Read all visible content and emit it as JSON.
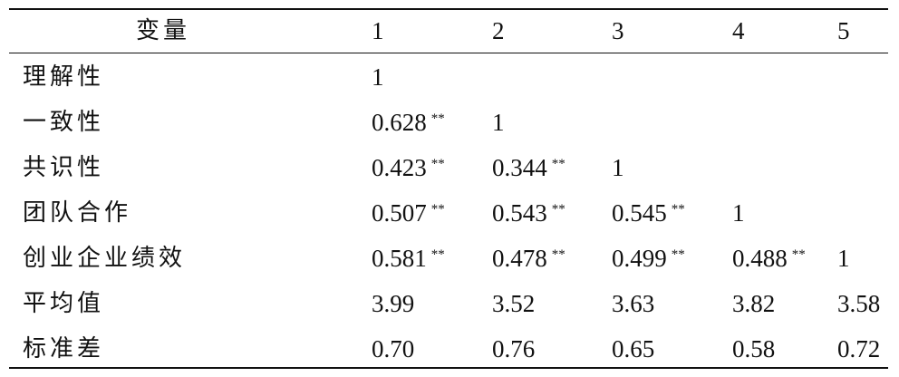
{
  "table": {
    "header": [
      "变量",
      "1",
      "2",
      "3",
      "4",
      "5"
    ],
    "rows": [
      {
        "label": "理解性",
        "cells": [
          {
            "value": "1"
          }
        ]
      },
      {
        "label": "一致性",
        "cells": [
          {
            "value": "0.628",
            "sig": "**"
          },
          {
            "value": "1"
          }
        ]
      },
      {
        "label": "共识性",
        "cells": [
          {
            "value": "0.423",
            "sig": "**"
          },
          {
            "value": "0.344",
            "sig": "**"
          },
          {
            "value": "1"
          }
        ]
      },
      {
        "label": "团队合作",
        "cells": [
          {
            "value": "0.507",
            "sig": "**"
          },
          {
            "value": "0.543",
            "sig": "**"
          },
          {
            "value": "0.545",
            "sig": "**"
          },
          {
            "value": "1"
          }
        ]
      },
      {
        "label": "创业企业绩效",
        "cells": [
          {
            "value": "0.581",
            "sig": "**"
          },
          {
            "value": "0.478",
            "sig": "**"
          },
          {
            "value": "0.499",
            "sig": "**"
          },
          {
            "value": "0.488",
            "sig": "**"
          },
          {
            "value": "1"
          }
        ]
      },
      {
        "label": "平均值",
        "cells": [
          {
            "value": "3.99"
          },
          {
            "value": "3.52"
          },
          {
            "value": "3.63"
          },
          {
            "value": "3.82"
          },
          {
            "value": "3.58"
          }
        ]
      },
      {
        "label": "标准差",
        "cells": [
          {
            "value": "0.70"
          },
          {
            "value": "0.76"
          },
          {
            "value": "0.65"
          },
          {
            "value": "0.58"
          },
          {
            "value": "0.72"
          }
        ]
      }
    ]
  }
}
